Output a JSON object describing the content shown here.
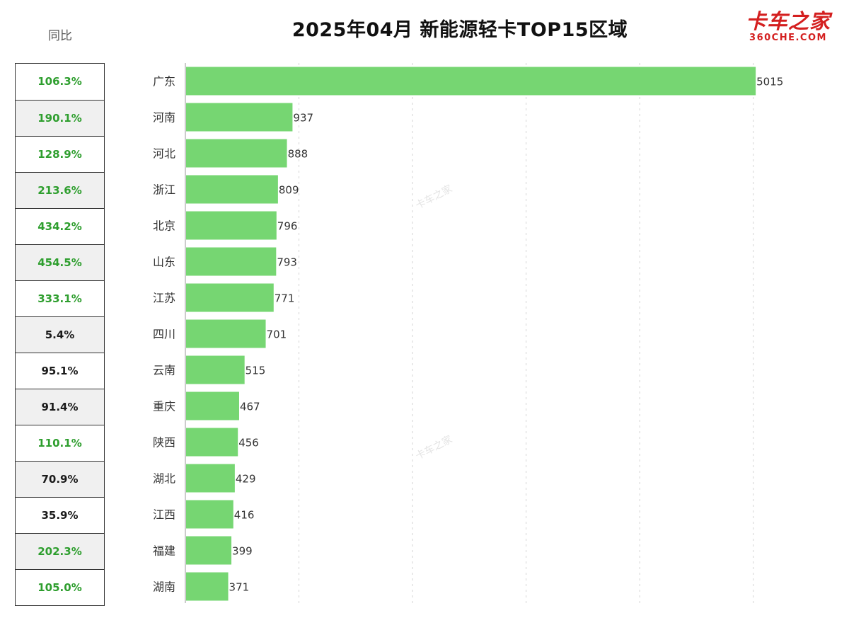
{
  "header": {
    "yoy_label": "同比",
    "title": "2025年04月 新能源轻卡TOP15区域",
    "logo_cn": "卡车之家",
    "logo_en": "360CHE.COM",
    "watermark": "卡车之家"
  },
  "colors": {
    "bar": "#76d672",
    "yoy_positive_text": "#2e9e2e",
    "yoy_other_text": "#1a1a1a",
    "grid": "#d4d4d4",
    "axis": "#999999"
  },
  "chart_data": {
    "type": "bar",
    "orientation": "horizontal",
    "title": "2025年04月 新能源轻卡TOP15区域",
    "categories": [
      "广东",
      "河南",
      "河北",
      "浙江",
      "北京",
      "山东",
      "江苏",
      "四川",
      "云南",
      "重庆",
      "陕西",
      "湖北",
      "江西",
      "福建",
      "湖南"
    ],
    "values": [
      5015,
      937,
      888,
      809,
      796,
      793,
      771,
      701,
      515,
      467,
      456,
      429,
      416,
      399,
      371
    ],
    "xlim": [
      0,
      5500
    ],
    "grid": true,
    "grid_style": "dashed-vertical",
    "show_x_ticks": false
  },
  "yoy": [
    {
      "value": "106.3%",
      "highlight": true
    },
    {
      "value": "190.1%",
      "highlight": true
    },
    {
      "value": "128.9%",
      "highlight": true
    },
    {
      "value": "213.6%",
      "highlight": true
    },
    {
      "value": "434.2%",
      "highlight": true
    },
    {
      "value": "454.5%",
      "highlight": true
    },
    {
      "value": "333.1%",
      "highlight": true
    },
    {
      "value": "5.4%",
      "highlight": false
    },
    {
      "value": "95.1%",
      "highlight": false
    },
    {
      "value": "91.4%",
      "highlight": false
    },
    {
      "value": "110.1%",
      "highlight": true
    },
    {
      "value": "70.9%",
      "highlight": false
    },
    {
      "value": "35.9%",
      "highlight": false
    },
    {
      "value": "202.3%",
      "highlight": true
    },
    {
      "value": "105.0%",
      "highlight": true
    }
  ]
}
